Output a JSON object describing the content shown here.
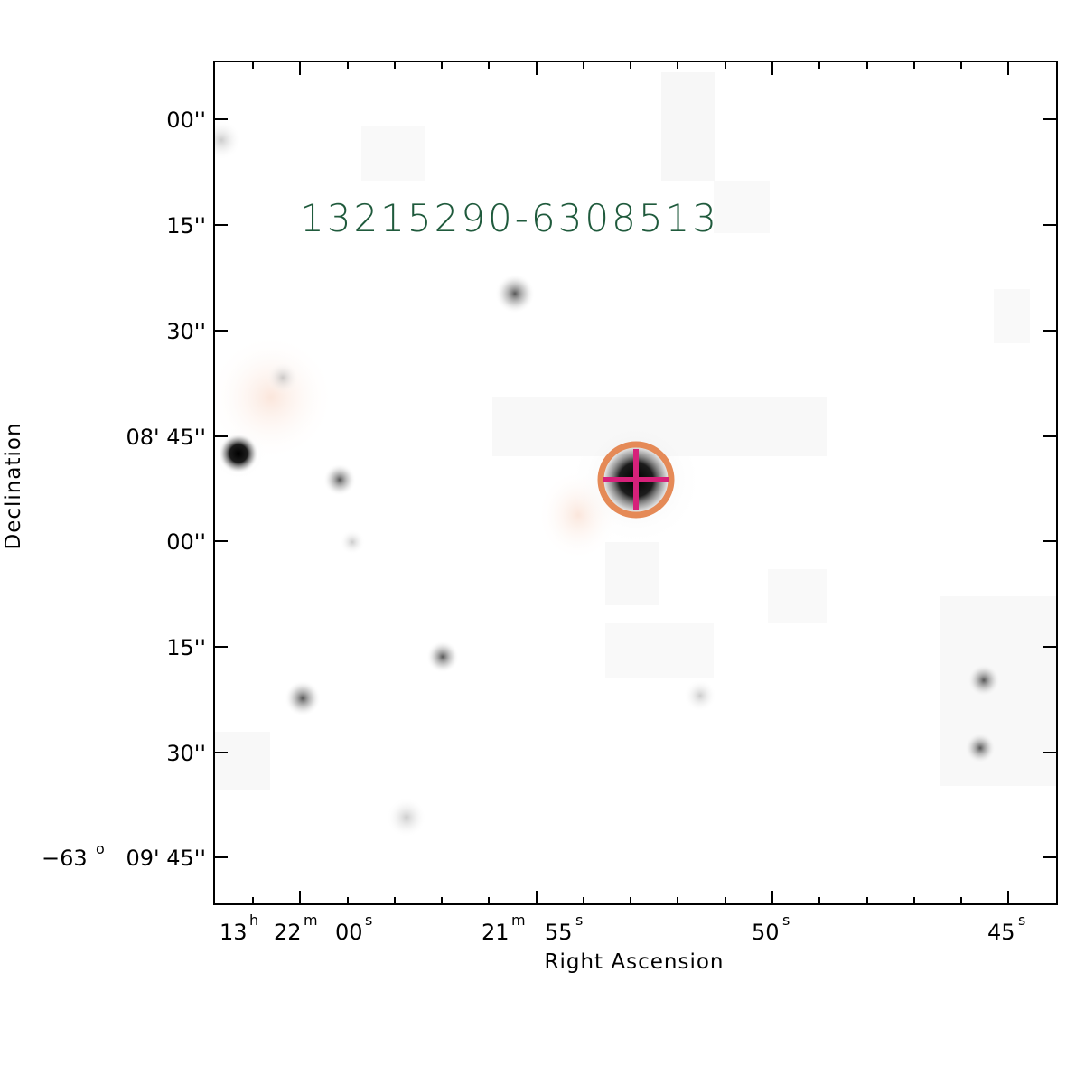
{
  "figure": {
    "object_label": "13215290-6308513",
    "x_axis_title": "Right Ascension",
    "y_axis_title": "Declination"
  },
  "dec_ticks": [
    {
      "main": "00''"
    },
    {
      "main": "15''"
    },
    {
      "main": "30''"
    },
    {
      "main": "08' 45''"
    },
    {
      "main": "00''"
    },
    {
      "main": "15''"
    },
    {
      "main": "30''"
    },
    {
      "main": "09' 45''",
      "prefix": "−63",
      "degree_sup": "o"
    }
  ],
  "ra_ticks": {
    "t1": {
      "h": "13",
      "h_sup": "h",
      "m": "22",
      "m_sup": "m",
      "s": "00",
      "s_sup": "s"
    },
    "t2": {
      "m": "21",
      "m_sup": "m",
      "s": "55",
      "s_sup": "s"
    },
    "t3": {
      "s": "50",
      "s_sup": "s"
    },
    "t4": {
      "s": "45",
      "s_sup": "s"
    }
  },
  "colors": {
    "frame": "#000000",
    "circle": "#e58a57",
    "crosshair": "#d6217a",
    "label": "#1f5a3c"
  }
}
